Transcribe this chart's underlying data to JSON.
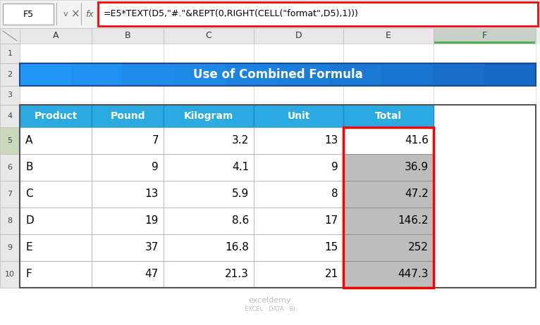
{
  "title": "Use of Combined Formula",
  "formula_bar_text": "=E5*TEXT(D5,\"#.\"&REPT(0,RIGHT(CELL(\"format\",D5),1)))",
  "cell_ref": "F5",
  "headers": [
    "Product",
    "Pound",
    "Kilogram",
    "Unit",
    "Total"
  ],
  "rows": [
    [
      "A",
      "7",
      "3.2",
      "13",
      "41.6"
    ],
    [
      "B",
      "9",
      "4.1",
      "9",
      "36.9"
    ],
    [
      "C",
      "13",
      "5.9",
      "8",
      "47.2"
    ],
    [
      "D",
      "19",
      "8.6",
      "17",
      "146.2"
    ],
    [
      "E",
      "37",
      "16.8",
      "15",
      "252"
    ],
    [
      "F",
      "47",
      "21.3",
      "21",
      "447.3"
    ]
  ],
  "col_letters": [
    "A",
    "B",
    "C",
    "D",
    "E",
    "F"
  ],
  "row_numbers": [
    "1",
    "2",
    "3",
    "4",
    "5",
    "6",
    "7",
    "8",
    "9",
    "10"
  ],
  "header_bg": "#29ABE2",
  "title_bg_left": "#2196F3",
  "title_bg_right": "#1565C0",
  "header_text_color": "#FFFFFF",
  "cell_bg_white": "#FFFFFF",
  "cell_bg_gray": "#BDBDBD",
  "formula_bar_border": "#FF0000",
  "total_col_border": "#FF0000",
  "col_header_bg": "#E0E0E0",
  "col_header_selected": "#B8CFB8",
  "row_header_bg": "#E8E8E8",
  "row_header_selected": "#C8D8B8",
  "grid_light": "#BBBBBB",
  "grid_dark": "#555555",
  "fig_bg": "#FFFFFF",
  "watermark_color": "#BBBBBB",
  "formula_icon_color": "#666666"
}
